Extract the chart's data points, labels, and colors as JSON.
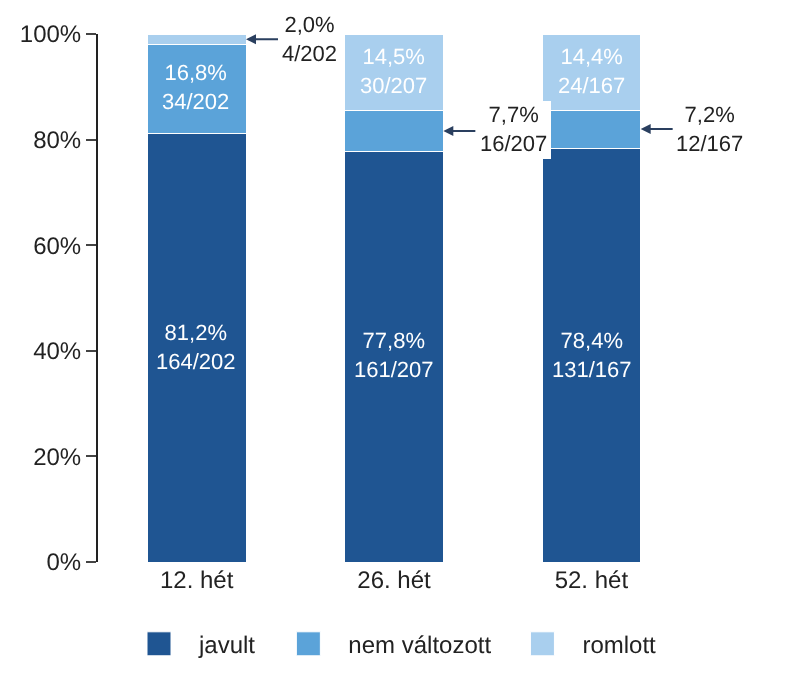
{
  "chart_data": {
    "type": "bar",
    "stacked": true,
    "categories": [
      "12. hét",
      "26. hét",
      "52. hét"
    ],
    "series": [
      {
        "name": "javult",
        "color": "#1f5592",
        "values": [
          81.2,
          77.8,
          78.4
        ],
        "value_labels": [
          "81,2%\n164/202",
          "77,8%\n161/207",
          "78,4%\n131/167"
        ]
      },
      {
        "name": "nem változott",
        "color": "#5ba3d9",
        "values": [
          16.8,
          7.7,
          7.2
        ],
        "value_labels": [
          "16,8%\n34/202",
          "7,7%\n16/207",
          "7,2%\n12/167"
        ]
      },
      {
        "name": "romlott",
        "color": "#a9cfee",
        "values": [
          2.0,
          14.5,
          14.4
        ],
        "value_labels": [
          "2,0%\n4/202",
          "14,5%\n30/207",
          "14,4%\n24/167"
        ]
      }
    ],
    "ylim": [
      0,
      100
    ],
    "yticks": [
      {
        "value": 0,
        "label": "0%"
      },
      {
        "value": 20,
        "label": "20%"
      },
      {
        "value": 40,
        "label": "40%"
      },
      {
        "value": 60,
        "label": "60%"
      },
      {
        "value": 80,
        "label": "80%"
      },
      {
        "value": 100,
        "label": "100%"
      }
    ],
    "grid": false,
    "legend": "bottom"
  }
}
